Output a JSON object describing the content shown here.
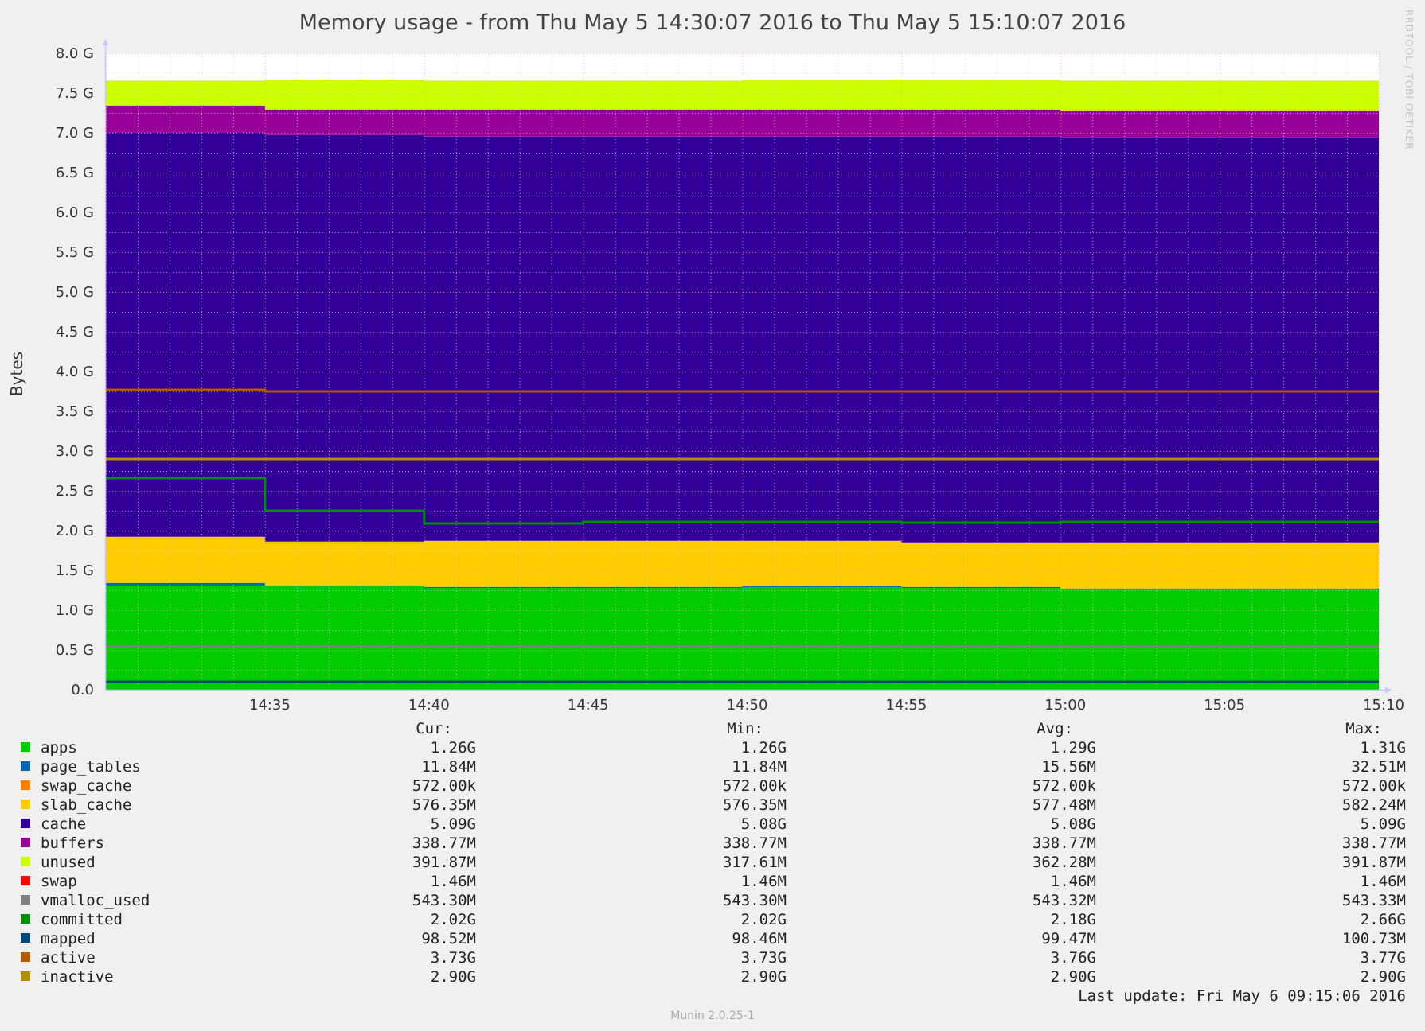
{
  "chart_data": {
    "type": "area",
    "title": "Memory usage - from Thu May  5 14:30:07 2016 to Thu May  5 15:10:07 2016",
    "ylabel": "Bytes",
    "xlabel": "",
    "ylim": [
      0,
      8.0
    ],
    "y_unit": "G",
    "y_ticks": [
      "0.0",
      "0.5 G",
      "1.0 G",
      "1.5 G",
      "2.0 G",
      "2.5 G",
      "3.0 G",
      "3.5 G",
      "4.0 G",
      "4.5 G",
      "5.0 G",
      "5.5 G",
      "6.0 G",
      "6.5 G",
      "7.0 G",
      "7.5 G",
      "8.0 G"
    ],
    "x_ticks": [
      "14:35",
      "14:40",
      "14:45",
      "14:50",
      "14:55",
      "15:00",
      "15:05",
      "15:10"
    ],
    "x_minutes": [
      0,
      5,
      10,
      15,
      20,
      25,
      30,
      35,
      40
    ],
    "grid": true,
    "stacked_series": [
      {
        "name": "apps",
        "color": "#00cc00",
        "values": [
          1.31,
          1.3,
          1.28,
          1.28,
          1.29,
          1.28,
          1.26,
          1.26,
          1.26
        ]
      },
      {
        "name": "page_tables",
        "color": "#0066b3",
        "values": [
          0.032,
          0.012,
          0.012,
          0.012,
          0.012,
          0.012,
          0.012,
          0.012,
          0.012
        ]
      },
      {
        "name": "swap_cache",
        "color": "#ff8000",
        "values": [
          0.001,
          0.001,
          0.001,
          0.001,
          0.001,
          0.001,
          0.001,
          0.001,
          0.001
        ]
      },
      {
        "name": "slab_cache",
        "color": "#ffcc00",
        "values": [
          0.58,
          0.55,
          0.58,
          0.58,
          0.57,
          0.56,
          0.58,
          0.58,
          0.576
        ]
      },
      {
        "name": "cache",
        "color": "#330099",
        "values": [
          5.08,
          5.11,
          5.08,
          5.08,
          5.08,
          5.1,
          5.09,
          5.09,
          5.09
        ]
      },
      {
        "name": "buffers",
        "color": "#990099",
        "values": [
          0.34,
          0.32,
          0.34,
          0.34,
          0.34,
          0.34,
          0.34,
          0.34,
          0.339
        ]
      },
      {
        "name": "unused",
        "color": "#ccff00",
        "values": [
          0.31,
          0.37,
          0.36,
          0.36,
          0.37,
          0.37,
          0.37,
          0.37,
          0.392
        ]
      },
      {
        "name": "swap",
        "color": "#ff0000",
        "values": [
          0.0015,
          0.0015,
          0.0015,
          0.0015,
          0.0015,
          0.0015,
          0.0015,
          0.0015,
          0.0015
        ]
      }
    ],
    "line_series": [
      {
        "name": "vmalloc_used",
        "color": "#808080",
        "values": [
          0.543,
          0.543,
          0.543,
          0.543,
          0.543,
          0.543,
          0.543,
          0.543,
          0.543
        ]
      },
      {
        "name": "committed",
        "color": "#008f00",
        "values": [
          2.66,
          2.25,
          2.09,
          2.11,
          2.11,
          2.1,
          2.11,
          2.11,
          2.02
        ]
      },
      {
        "name": "mapped",
        "color": "#00487d",
        "values": [
          0.1,
          0.1,
          0.1,
          0.1,
          0.1,
          0.1,
          0.1,
          0.1,
          0.099
        ]
      },
      {
        "name": "active",
        "color": "#b35a00",
        "values": [
          3.77,
          3.75,
          3.75,
          3.75,
          3.75,
          3.75,
          3.75,
          3.75,
          3.73
        ]
      },
      {
        "name": "inactive",
        "color": "#b38f00",
        "values": [
          2.9,
          2.9,
          2.9,
          2.9,
          2.9,
          2.9,
          2.9,
          2.9,
          2.9
        ]
      }
    ]
  },
  "legend": {
    "headers": {
      "cur": "Cur:",
      "min": "Min:",
      "avg": "Avg:",
      "max": "Max:"
    },
    "rows": [
      {
        "name": "apps",
        "color": "#00cc00",
        "cur": "1.26G",
        "min": "1.26G",
        "avg": "1.29G",
        "max": "1.31G"
      },
      {
        "name": "page_tables",
        "color": "#0066b3",
        "cur": "11.84M",
        "min": "11.84M",
        "avg": "15.56M",
        "max": "32.51M"
      },
      {
        "name": "swap_cache",
        "color": "#ff8000",
        "cur": "572.00k",
        "min": "572.00k",
        "avg": "572.00k",
        "max": "572.00k"
      },
      {
        "name": "slab_cache",
        "color": "#ffcc00",
        "cur": "576.35M",
        "min": "576.35M",
        "avg": "577.48M",
        "max": "582.24M"
      },
      {
        "name": "cache",
        "color": "#330099",
        "cur": "5.09G",
        "min": "5.08G",
        "avg": "5.08G",
        "max": "5.09G"
      },
      {
        "name": "buffers",
        "color": "#990099",
        "cur": "338.77M",
        "min": "338.77M",
        "avg": "338.77M",
        "max": "338.77M"
      },
      {
        "name": "unused",
        "color": "#ccff00",
        "cur": "391.87M",
        "min": "317.61M",
        "avg": "362.28M",
        "max": "391.87M"
      },
      {
        "name": "swap",
        "color": "#ff0000",
        "cur": "1.46M",
        "min": "1.46M",
        "avg": "1.46M",
        "max": "1.46M"
      },
      {
        "name": "vmalloc_used",
        "color": "#808080",
        "cur": "543.30M",
        "min": "543.30M",
        "avg": "543.32M",
        "max": "543.33M"
      },
      {
        "name": "committed",
        "color": "#008f00",
        "cur": "2.02G",
        "min": "2.02G",
        "avg": "2.18G",
        "max": "2.66G"
      },
      {
        "name": "mapped",
        "color": "#00487d",
        "cur": "98.52M",
        "min": "98.46M",
        "avg": "99.47M",
        "max": "100.73M"
      },
      {
        "name": "active",
        "color": "#b35a00",
        "cur": "3.73G",
        "min": "3.73G",
        "avg": "3.76G",
        "max": "3.77G"
      },
      {
        "name": "inactive",
        "color": "#b38f00",
        "cur": "2.90G",
        "min": "2.90G",
        "avg": "2.90G",
        "max": "2.90G"
      }
    ]
  },
  "last_update": "Last update:  Fri May  6 09:15:06 2016",
  "watermark": "RRDTOOL / TOBI OETIKER",
  "footer": "Munin 2.0.25-1"
}
